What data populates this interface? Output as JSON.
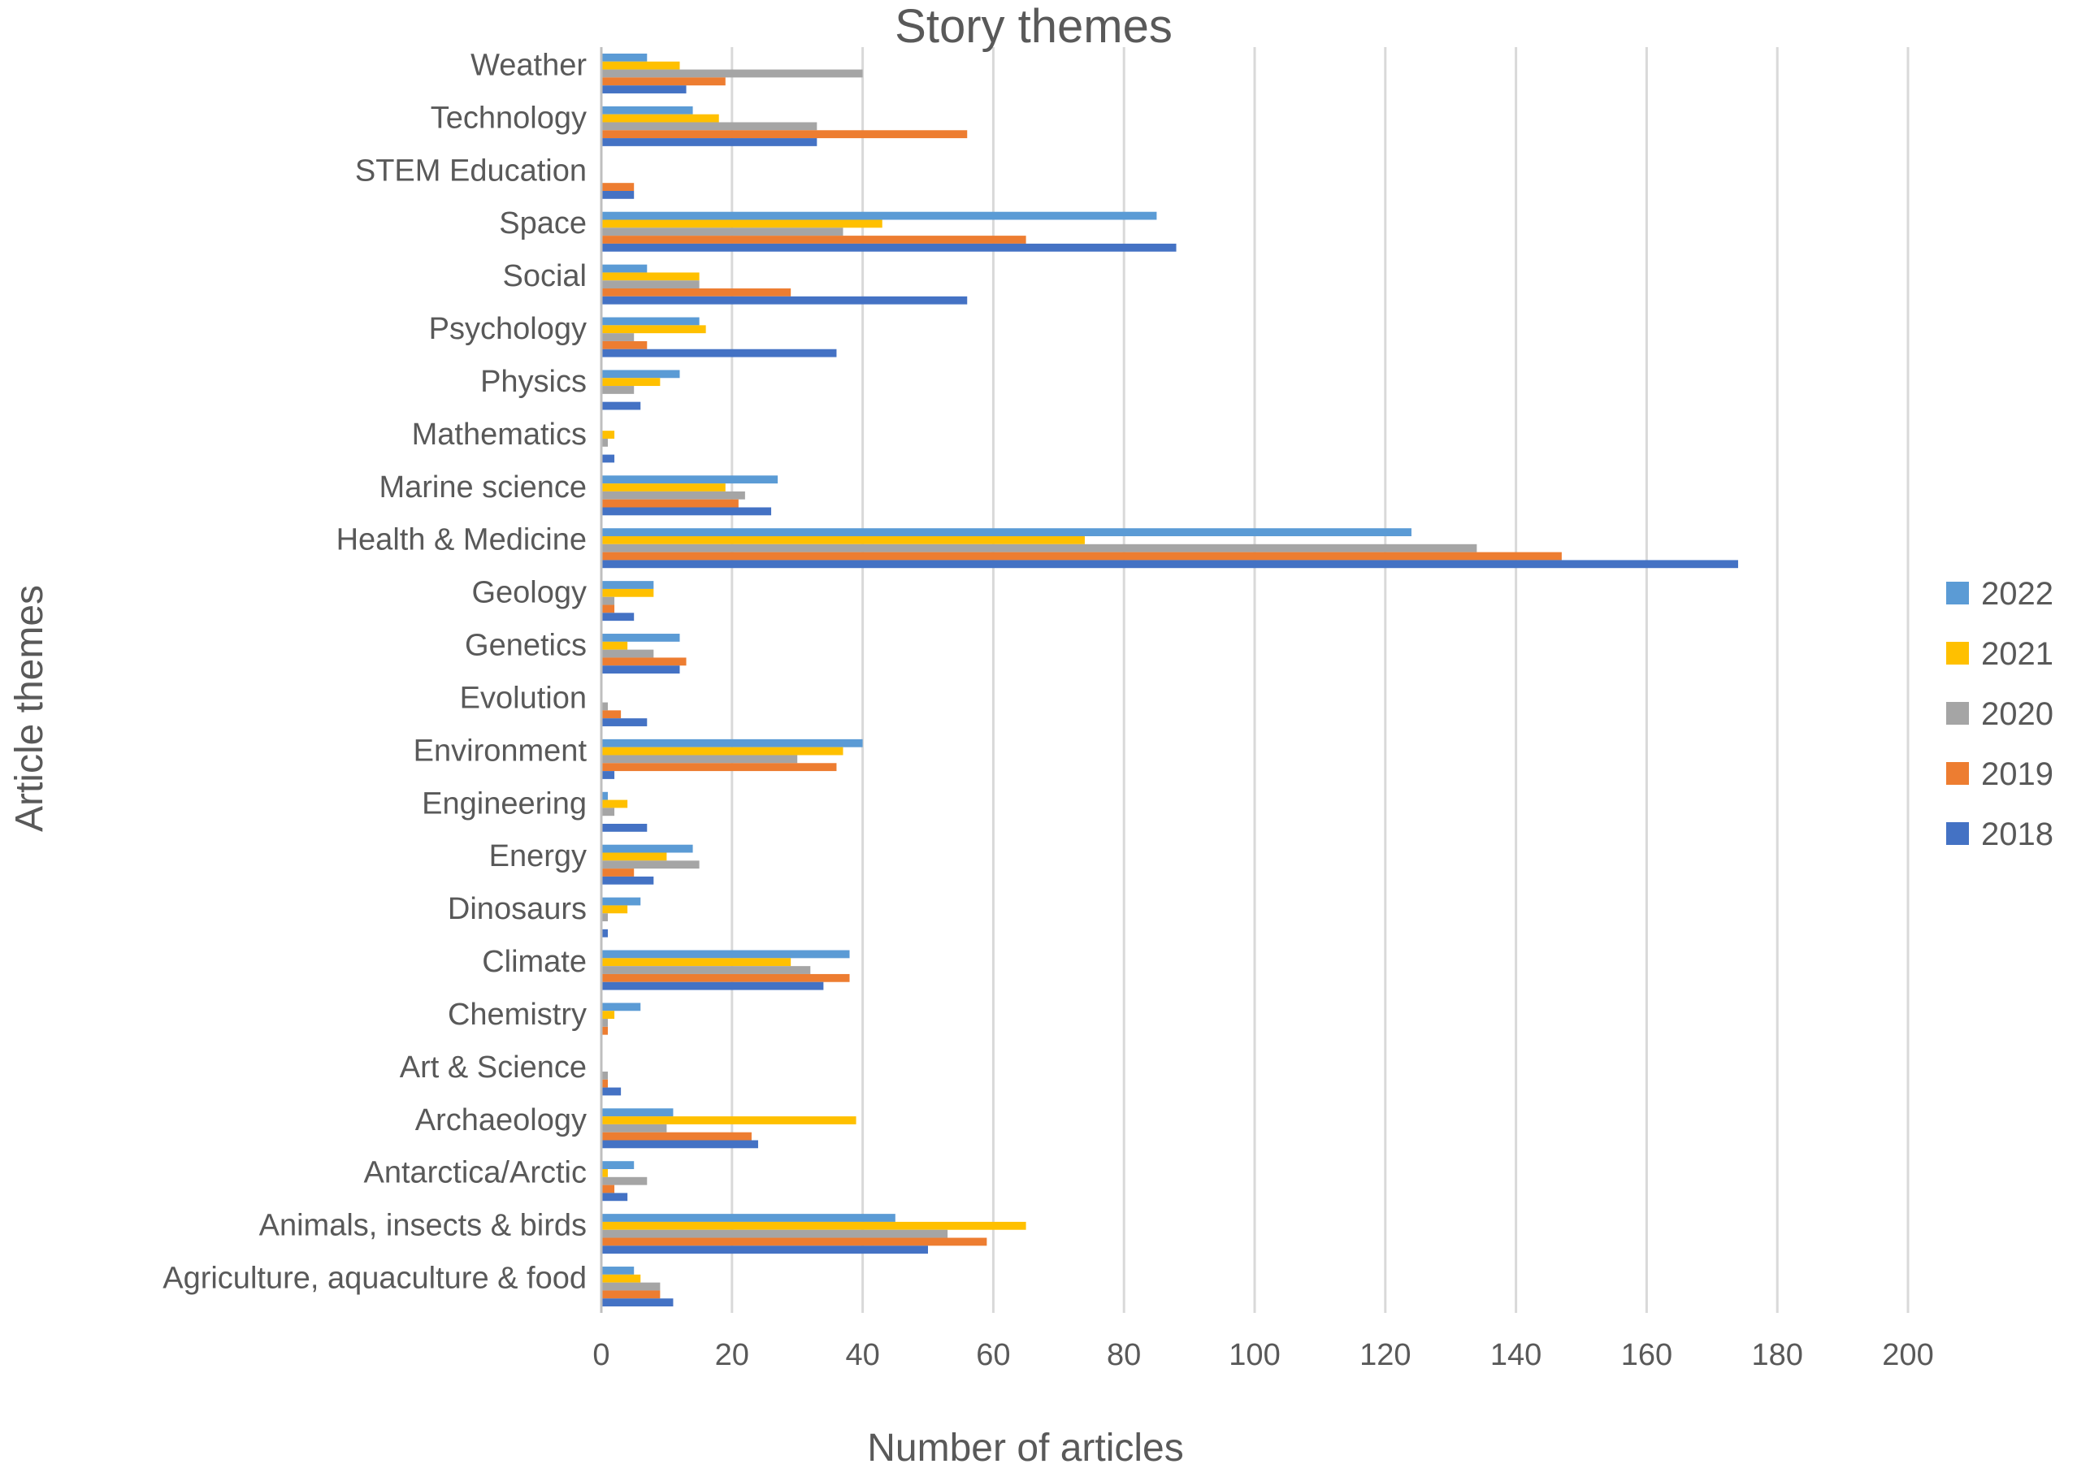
{
  "chart_data": {
    "type": "bar",
    "orientation": "horizontal",
    "title": "Story themes",
    "xlabel": "Number of articles",
    "ylabel": "Article themes",
    "xlim": [
      0,
      200
    ],
    "xticks": [
      "0",
      "20",
      "40",
      "60",
      "80",
      "100",
      "120",
      "140",
      "160",
      "180",
      "200"
    ],
    "grid": true,
    "legend_position": "right",
    "categories": [
      "Weather",
      "Technology",
      "STEM Education",
      "Space",
      "Social",
      "Psychology",
      "Physics",
      "Mathematics",
      "Marine science",
      "Health & Medicine",
      "Geology",
      "Genetics",
      "Evolution",
      "Environment",
      "Engineering",
      "Energy",
      "Dinosaurs",
      "Climate",
      "Chemistry",
      "Art & Science",
      "Archaeology",
      "Antarctica/Arctic",
      "Animals, insects & birds",
      "Agriculture, aquaculture & food"
    ],
    "series": [
      {
        "name": "2022",
        "color": "#5B9BD5",
        "values": [
          7,
          14,
          0,
          85,
          7,
          15,
          12,
          0,
          27,
          124,
          8,
          12,
          0,
          40,
          1,
          14,
          6,
          38,
          6,
          0,
          11,
          5,
          45,
          5
        ]
      },
      {
        "name": "2021",
        "color": "#FFC000",
        "values": [
          12,
          18,
          0,
          43,
          15,
          16,
          9,
          2,
          19,
          74,
          8,
          4,
          0,
          37,
          4,
          10,
          4,
          29,
          2,
          0,
          39,
          1,
          65,
          6
        ]
      },
      {
        "name": "2020",
        "color": "#A5A5A5",
        "values": [
          40,
          33,
          0,
          37,
          15,
          5,
          5,
          1,
          22,
          134,
          2,
          8,
          1,
          30,
          2,
          15,
          1,
          32,
          1,
          1,
          10,
          7,
          53,
          9
        ]
      },
      {
        "name": "2019",
        "color": "#ED7D31",
        "values": [
          19,
          56,
          5,
          65,
          29,
          7,
          0,
          0,
          21,
          147,
          2,
          13,
          3,
          36,
          0,
          5,
          0,
          38,
          1,
          1,
          23,
          2,
          59,
          9
        ]
      },
      {
        "name": "2018",
        "color": "#4472C4",
        "values": [
          13,
          33,
          5,
          88,
          56,
          36,
          6,
          2,
          26,
          174,
          5,
          12,
          7,
          2,
          7,
          8,
          1,
          34,
          0,
          3,
          24,
          4,
          50,
          11
        ]
      }
    ],
    "legend_order": [
      "2022",
      "2021",
      "2020",
      "2019",
      "2018"
    ]
  }
}
